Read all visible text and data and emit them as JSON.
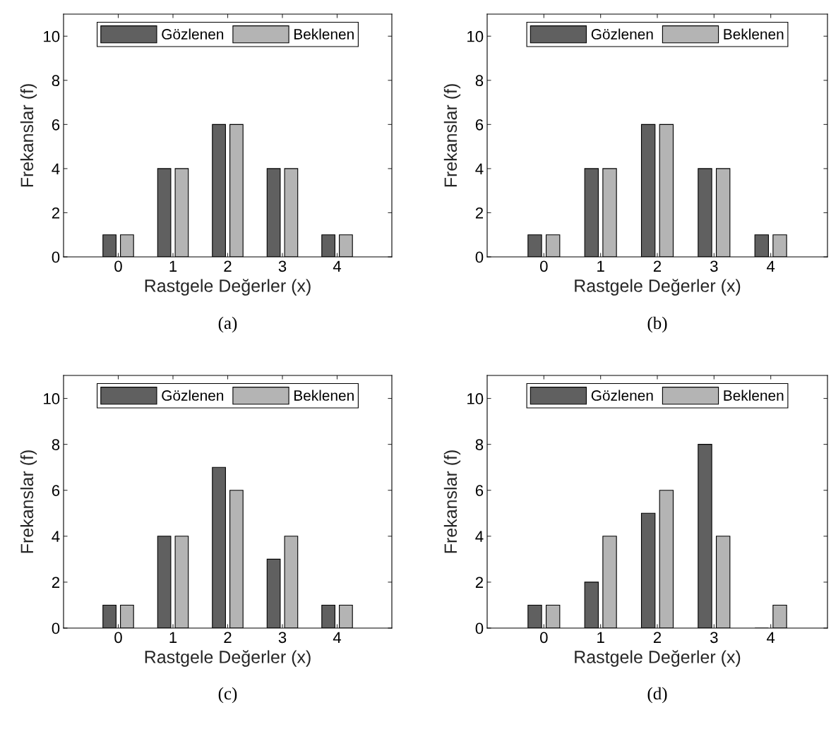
{
  "chart_data": [
    {
      "type": "bar",
      "xlabel": "Rastgele Değerler (x)",
      "ylabel": "Frekanslar (f)",
      "x": [
        0,
        1,
        2,
        3,
        4
      ],
      "xlim": [
        -1,
        5
      ],
      "xticks": [
        0,
        1,
        2,
        3,
        4
      ],
      "ylim": [
        0,
        11
      ],
      "yticks": [
        0,
        2,
        4,
        6,
        8,
        10
      ],
      "grid": false,
      "legend": "top",
      "series": [
        {
          "name": "Gözlenen",
          "color": "#606060",
          "values": [
            1,
            4,
            6,
            4,
            1
          ]
        },
        {
          "name": "Beklenen",
          "color": "#b4b4b4",
          "values": [
            1,
            4,
            6,
            4,
            1
          ]
        }
      ],
      "annotations": [
        "(a)"
      ]
    },
    {
      "type": "bar",
      "xlabel": "Rastgele Değerler (x)",
      "ylabel": "Frekanslar (f)",
      "x": [
        0,
        1,
        2,
        3,
        4
      ],
      "xlim": [
        -1,
        5
      ],
      "xticks": [
        0,
        1,
        2,
        3,
        4
      ],
      "ylim": [
        0,
        11
      ],
      "yticks": [
        0,
        2,
        4,
        6,
        8,
        10
      ],
      "grid": false,
      "legend": "top",
      "series": [
        {
          "name": "Gözlenen",
          "color": "#606060",
          "values": [
            1,
            4,
            6,
            4,
            1
          ]
        },
        {
          "name": "Beklenen",
          "color": "#b4b4b4",
          "values": [
            1,
            4,
            6,
            4,
            1
          ]
        }
      ],
      "annotations": [
        "(b)"
      ]
    },
    {
      "type": "bar",
      "xlabel": "Rastgele Değerler (x)",
      "ylabel": "Frekanslar (f)",
      "x": [
        0,
        1,
        2,
        3,
        4
      ],
      "xlim": [
        -1,
        5
      ],
      "xticks": [
        0,
        1,
        2,
        3,
        4
      ],
      "ylim": [
        0,
        11
      ],
      "yticks": [
        0,
        2,
        4,
        6,
        8,
        10
      ],
      "grid": false,
      "legend": "top",
      "series": [
        {
          "name": "Gözlenen",
          "color": "#606060",
          "values": [
            1,
            4,
            7,
            3,
            1
          ]
        },
        {
          "name": "Beklenen",
          "color": "#b4b4b4",
          "values": [
            1,
            4,
            6,
            4,
            1
          ]
        }
      ],
      "annotations": [
        "(c)"
      ]
    },
    {
      "type": "bar",
      "xlabel": "Rastgele Değerler (x)",
      "ylabel": "Frekanslar (f)",
      "x": [
        0,
        1,
        2,
        3,
        4
      ],
      "xlim": [
        -1,
        5
      ],
      "xticks": [
        0,
        1,
        2,
        3,
        4
      ],
      "ylim": [
        0,
        11
      ],
      "yticks": [
        0,
        2,
        4,
        6,
        8,
        10
      ],
      "grid": false,
      "legend": "top",
      "series": [
        {
          "name": "Gözlenen",
          "color": "#606060",
          "values": [
            1,
            2,
            5,
            8,
            0
          ]
        },
        {
          "name": "Beklenen",
          "color": "#b4b4b4",
          "values": [
            1,
            4,
            6,
            4,
            1
          ]
        }
      ],
      "annotations": [
        "(d)"
      ]
    }
  ]
}
